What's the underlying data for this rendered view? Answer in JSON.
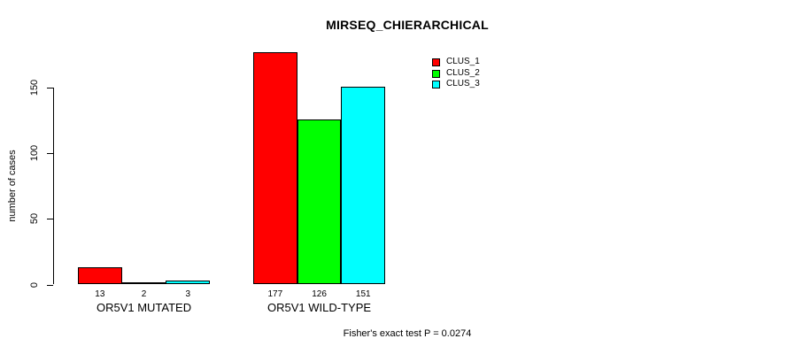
{
  "chart_data": {
    "type": "bar",
    "title": "MIRSEQ_CHIERARCHICAL",
    "ylabel": "number of cases",
    "xlabel": "",
    "subtitle": "Fisher's exact test P = 0.0274",
    "categories": [
      "OR5V1 MUTATED",
      "OR5V1 WILD-TYPE"
    ],
    "series": [
      {
        "name": "CLUS_1",
        "color": "#ff0000",
        "values": [
          13,
          177
        ]
      },
      {
        "name": "CLUS_2",
        "color": "#00ff00",
        "values": [
          2,
          126
        ]
      },
      {
        "name": "CLUS_3",
        "color": "#00ffff",
        "values": [
          3,
          151
        ]
      }
    ],
    "bar_value_labels": [
      [
        "13",
        "2",
        "3"
      ],
      [
        "177",
        "126",
        "151"
      ]
    ],
    "yticks": [
      0,
      50,
      100,
      150
    ],
    "ylim": [
      0,
      180
    ],
    "grid": false,
    "legend_position": "top-right",
    "colors": {
      "background": "#ffffff",
      "foreground": "#000000"
    }
  }
}
